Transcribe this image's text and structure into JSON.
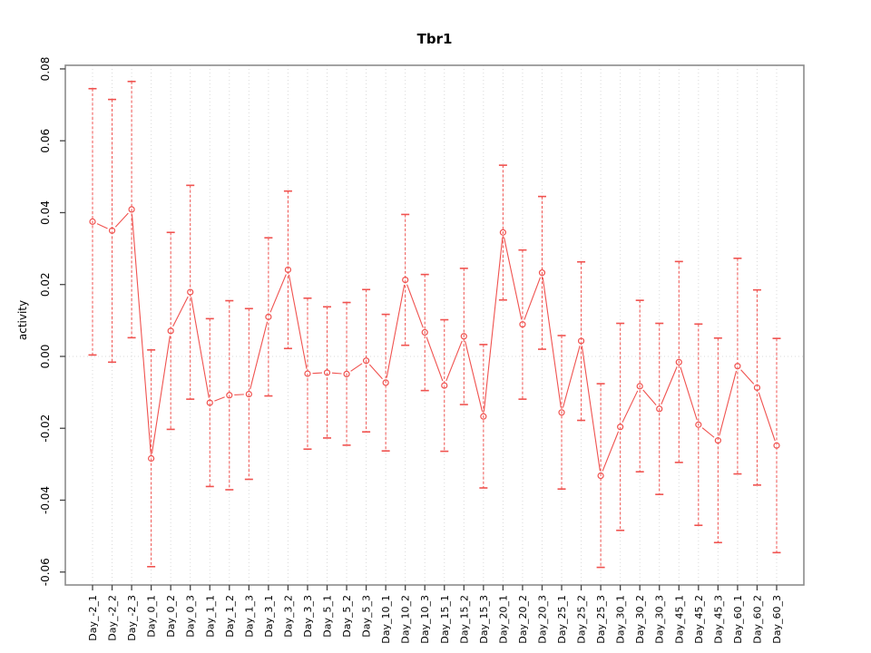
{
  "window": {
    "background": "#ffffff"
  },
  "chart_data": {
    "type": "line",
    "subtype": "points-with-error-bars",
    "title": "Tbr1",
    "xlabel": "",
    "ylabel": "activity",
    "legend": "none",
    "grid": {
      "vertical_dotted_per_category": true,
      "dotted_zero_line": true,
      "grid_color": "#d9d9d9"
    },
    "marker": "open-circle",
    "error_bar_style": "dashed-vertical-line-with-solid-caps",
    "series_color": "#f0524f",
    "frame_color": "#8c8c8c",
    "tick_color": "#444444",
    "text_color": "#000000",
    "ylim": [
      -0.0636,
      0.081
    ],
    "yticks": [
      0.08,
      0.06,
      0.04,
      0.02,
      0.0,
      -0.02,
      -0.04,
      -0.06
    ],
    "categories": [
      "Day_-2_1",
      "Day_-2_2",
      "Day_-2_3",
      "Day_0_1",
      "Day_0_2",
      "Day_0_3",
      "Day_1_1",
      "Day_1_2",
      "Day_1_3",
      "Day_3_1",
      "Day_3_2",
      "Day_3_3",
      "Day_5_1",
      "Day_5_2",
      "Day_5_3",
      "Day_10_1",
      "Day_10_2",
      "Day_10_3",
      "Day_15_1",
      "Day_15_2",
      "Day_15_3",
      "Day_20_1",
      "Day_20_2",
      "Day_20_3",
      "Day_25_1",
      "Day_25_2",
      "Day_25_3",
      "Day_30_1",
      "Day_30_2",
      "Day_30_3",
      "Day_45_1",
      "Day_45_2",
      "Day_45_3",
      "Day_60_1",
      "Day_60_2",
      "Day_60_3"
    ],
    "series": [
      {
        "name": "activity",
        "values": [
          0.0375,
          0.035,
          0.0409,
          -0.0284,
          0.0071,
          0.0179,
          -0.0129,
          -0.0108,
          -0.0105,
          0.011,
          0.0241,
          -0.0048,
          -0.0045,
          -0.0049,
          -0.0012,
          -0.0073,
          0.0213,
          0.0067,
          -0.0081,
          0.0056,
          -0.0167,
          0.0345,
          0.0089,
          0.0233,
          -0.0156,
          0.0043,
          -0.0332,
          -0.0196,
          -0.0083,
          -0.0146,
          -0.0016,
          -0.019,
          -0.0234,
          -0.0027,
          -0.0087,
          -0.0248
        ],
        "upper": [
          0.0745,
          0.0715,
          0.0765,
          0.0018,
          0.0345,
          0.0476,
          0.0105,
          0.0155,
          0.0133,
          0.033,
          0.046,
          0.0162,
          0.0138,
          0.015,
          0.0186,
          0.0117,
          0.0395,
          0.0228,
          0.0102,
          0.0245,
          0.0033,
          0.0532,
          0.0296,
          0.0445,
          0.0058,
          0.0263,
          -0.0076,
          0.0092,
          0.0156,
          0.0092,
          0.0264,
          0.009,
          0.0051,
          0.0273,
          0.0185,
          0.005
        ],
        "lower": [
          0.0004,
          -0.0016,
          0.0052,
          -0.0585,
          -0.0203,
          -0.0119,
          -0.0362,
          -0.0371,
          -0.0342,
          -0.011,
          0.0022,
          -0.0258,
          -0.0227,
          -0.0247,
          -0.021,
          -0.0263,
          0.0031,
          -0.0095,
          -0.0264,
          -0.0134,
          -0.0366,
          0.0157,
          -0.0119,
          0.002,
          -0.0369,
          -0.0178,
          -0.0587,
          -0.0484,
          -0.0321,
          -0.0384,
          -0.0295,
          -0.047,
          -0.0518,
          -0.0327,
          -0.0358,
          -0.0546
        ]
      }
    ]
  }
}
